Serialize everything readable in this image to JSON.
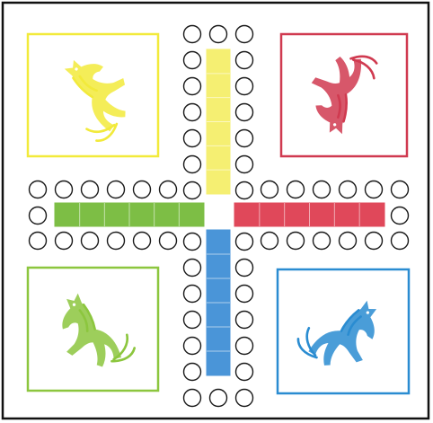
{
  "board": {
    "colors": {
      "border": "#111111",
      "background": "#ffffff",
      "hole_stroke": "#1a1a1a",
      "yellow": "#f2ea3b",
      "red": "#d03a50",
      "green": "#8cc63e",
      "blue": "#2a8cd1",
      "lane_yellow": "#f5ef72",
      "lane_red": "#e0485a",
      "lane_green": "#7dbe45",
      "lane_blue": "#4a95d8"
    },
    "home_bases": [
      {
        "color": "yellow",
        "icon": "rearing-horse-icon"
      },
      {
        "color": "red",
        "icon": "rearing-horse-icon"
      },
      {
        "color": "green",
        "icon": "rearing-horse-icon"
      },
      {
        "color": "blue",
        "icon": "rearing-horse-icon"
      }
    ],
    "track_holes_per_arm": 7,
    "lane_squares_per_arm": 6
  }
}
